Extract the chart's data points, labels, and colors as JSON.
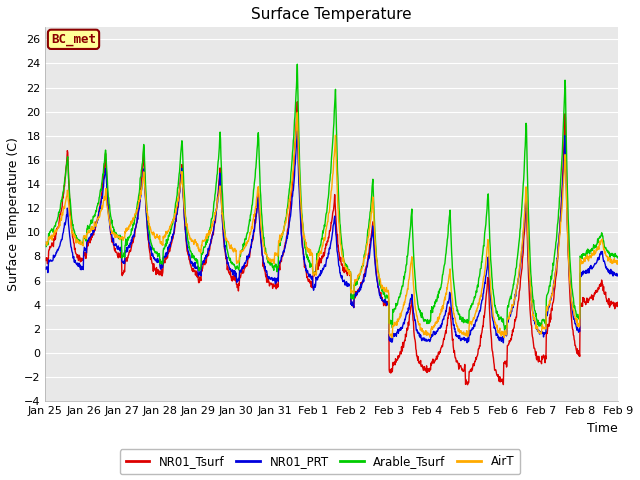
{
  "title": "Surface Temperature",
  "ylabel": "Surface Temperature (C)",
  "xlabel": "Time",
  "annotation": "BC_met",
  "ylim": [
    -4,
    27
  ],
  "yticks": [
    -4,
    -2,
    0,
    2,
    4,
    6,
    8,
    10,
    12,
    14,
    16,
    18,
    20,
    22,
    24,
    26
  ],
  "bg_color": "#ffffff",
  "plot_bg_color": "#e8e8e8",
  "grid_color": "#ffffff",
  "series_colors": {
    "NR01_Tsurf": "#dd0000",
    "NR01_PRT": "#0000dd",
    "Arable_Tsurf": "#00cc00",
    "AirT": "#ffaa00"
  },
  "line_width": 1.0,
  "xtick_labels": [
    "Jan 25",
    "Jan 26",
    "Jan 27",
    "Jan 28",
    "Jan 29",
    "Jan 30",
    "Jan 31",
    "Feb 1",
    "Feb 2",
    "Feb 3",
    "Feb 4",
    "Feb 5",
    "Feb 6",
    "Feb 7",
    "Feb 8",
    "Feb 9"
  ],
  "n_points": 1440,
  "n_days": 15
}
